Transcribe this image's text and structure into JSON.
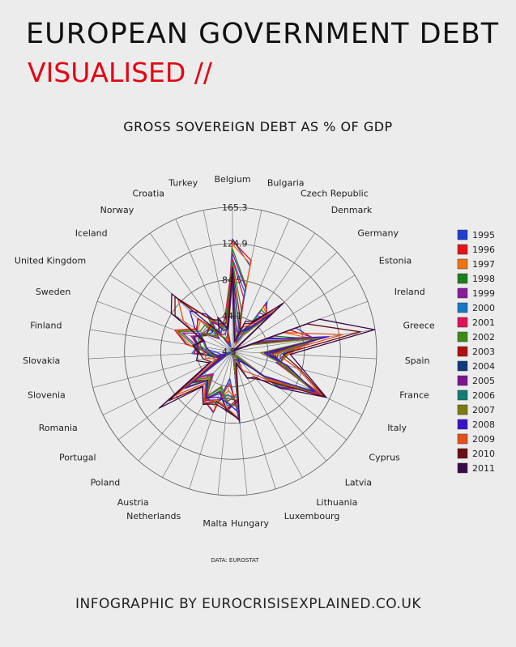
{
  "header": {
    "title": "EUROPEAN GOVERNMENT DEBT",
    "subtitle": "VISUALISED //"
  },
  "footer": {
    "source": "DATA: EUROSTAT",
    "credit": "INFOGRAPHIC BY EUROCRISISEXPLAINED.CO.UK"
  },
  "chart_data": {
    "type": "radar",
    "title": "GROSS SOVEREIGN DEBT AS % OF GDP",
    "axes": [
      "Belgium",
      "Bulgaria",
      "Czech Republic",
      "Denmark",
      "Germany",
      "Estonia",
      "Ireland",
      "Greece",
      "Spain",
      "France",
      "Italy",
      "Cyprus",
      "Latvia",
      "Lithuania",
      "Luxembourg",
      "Hungary",
      "Malta",
      "Netherlands",
      "Austria",
      "Poland",
      "Portugal",
      "Romania",
      "Slovenia",
      "Slovakia",
      "Finland",
      "Sweden",
      "United Kingdom",
      "Iceland",
      "Norway",
      "Croatia",
      "Turkey"
    ],
    "rings": [
      4.5,
      44.1,
      84.5,
      124.9,
      165.3
    ],
    "ring_labels": [
      "4.5",
      "44.1",
      "84.5",
      "124.9",
      "165.3"
    ],
    "range": [
      4.5,
      165.3
    ],
    "legend_position": "right",
    "series": [
      {
        "name": "1995",
        "color": "#1f3fd0",
        "values": [
          130,
          102,
          14,
          72,
          55,
          8,
          80,
          97,
          63,
          55,
          121,
          51,
          15,
          11,
          7,
          85,
          35,
          76,
          68,
          49,
          59,
          7,
          18,
          22,
          56,
          72,
          51,
          58,
          32,
          10,
          33
        ]
      },
      {
        "name": "1996",
        "color": "#e3121b",
        "values": [
          128,
          108,
          12,
          69,
          58,
          7,
          73,
          99,
          67,
          58,
          120,
          53,
          14,
          14,
          7,
          71,
          40,
          75,
          68,
          46,
          58,
          11,
          21,
          31,
          57,
          73,
          52,
          57,
          30,
          14,
          29
        ]
      },
      {
        "name": "1997",
        "color": "#f07214",
        "values": [
          124,
          104,
          12,
          65,
          59,
          6,
          65,
          97,
          66,
          59,
          117,
          55,
          12,
          15,
          7,
          64,
          48,
          69,
          64,
          44,
          55,
          15,
          22,
          33,
          53,
          71,
          50,
          54,
          27,
          18,
          32
        ]
      },
      {
        "name": "1998",
        "color": "#1b7f1e",
        "values": [
          119,
          79,
          15,
          61,
          60,
          6,
          54,
          95,
          64,
          59,
          114,
          58,
          10,
          16,
          7,
          62,
          53,
          65,
          64,
          39,
          51,
          18,
          23,
          34,
          48,
          69,
          47,
          47,
          24,
          20,
          30
        ]
      },
      {
        "name": "1999",
        "color": "#8a1b9c",
        "values": [
          114,
          77,
          16,
          57,
          61,
          6,
          48,
          94,
          62,
          59,
          113,
          59,
          12,
          23,
          7,
          60,
          57,
          61,
          67,
          40,
          51,
          21,
          24,
          47,
          45,
          64,
          43,
          41,
          28,
          25,
          33
        ]
      },
      {
        "name": "2000",
        "color": "#1777c4",
        "values": [
          108,
          72,
          18,
          52,
          60,
          5,
          38,
          104,
          59,
          57,
          108,
          59,
          12,
          24,
          6,
          56,
          54,
          54,
          66,
          37,
          50,
          22,
          26,
          50,
          44,
          53,
          41,
          39,
          29,
          33,
          39
        ]
      },
      {
        "name": "2001",
        "color": "#e0105a",
        "values": [
          107,
          66,
          24,
          49,
          59,
          5,
          35,
          107,
          55,
          56,
          108,
          61,
          14,
          23,
          6,
          52,
          61,
          51,
          67,
          38,
          53,
          26,
          26,
          48,
          43,
          54,
          38,
          42,
          27,
          34,
          45
        ]
      },
      {
        "name": "2002",
        "color": "#3d8a17",
        "values": [
          104,
          53,
          26,
          49,
          61,
          6,
          32,
          105,
          52,
          59,
          105,
          64,
          13,
          22,
          6,
          55,
          60,
          50,
          66,
          42,
          56,
          25,
          28,
          43,
          42,
          51,
          38,
          41,
          34,
          35,
          42
        ]
      },
      {
        "name": "2003",
        "color": "#b00f10",
        "values": [
          99,
          45,
          28,
          46,
          64,
          6,
          31,
          98,
          49,
          63,
          104,
          69,
          14,
          21,
          6,
          58,
          69,
          52,
          65,
          47,
          59,
          21,
          27,
          42,
          44,
          51,
          39,
          41,
          44,
          35,
          38
        ]
      },
      {
        "name": "2004",
        "color": "#0f3a7a",
        "values": [
          94,
          37,
          28,
          44,
          66,
          5,
          29,
          99,
          46,
          65,
          104,
          70,
          15,
          19,
          6,
          60,
          72,
          52,
          64,
          46,
          62,
          19,
          27,
          41,
          44,
          51,
          40,
          35,
          45,
          38,
          37
        ]
      },
      {
        "name": "2005",
        "color": "#7a1590",
        "values": [
          92,
          27,
          28,
          37,
          68,
          5,
          27,
          101,
          43,
          67,
          106,
          69,
          12,
          18,
          6,
          61,
          70,
          52,
          64,
          47,
          68,
          16,
          27,
          34,
          42,
          50,
          42,
          25,
          44,
          38,
          33
        ]
      },
      {
        "name": "2006",
        "color": "#137d73",
        "values": [
          88,
          21,
          28,
          31,
          68,
          4,
          25,
          107,
          40,
          64,
          106,
          65,
          10,
          18,
          7,
          65,
          65,
          47,
          62,
          48,
          69,
          12,
          26,
          31,
          40,
          45,
          43,
          30,
          54,
          36,
          30
        ]
      },
      {
        "name": "2007",
        "color": "#7b7b0e",
        "values": [
          84,
          17,
          28,
          27,
          65,
          4,
          25,
          107,
          36,
          64,
          103,
          59,
          9,
          17,
          7,
          67,
          62,
          45,
          61,
          45,
          69,
          13,
          23,
          30,
          35,
          40,
          44,
          28,
          52,
          33,
          28
        ]
      },
      {
        "name": "2008",
        "color": "#3a12c8",
        "values": [
          89,
          14,
          29,
          34,
          66,
          5,
          44,
          113,
          40,
          68,
          106,
          49,
          20,
          16,
          14,
          73,
          62,
          58,
          64,
          47,
          72,
          13,
          22,
          28,
          34,
          38,
          54,
          70,
          55,
          30,
          29
        ]
      },
      {
        "name": "2009",
        "color": "#e4501c",
        "values": [
          96,
          15,
          34,
          41,
          74,
          7,
          65,
          129,
          54,
          79,
          116,
          59,
          37,
          29,
          15,
          80,
          68,
          61,
          70,
          51,
          84,
          24,
          35,
          36,
          43,
          42,
          69,
          88,
          48,
          36,
          36
        ]
      },
      {
        "name": "2010",
        "color": "#6b0d12",
        "values": [
          96,
          16,
          38,
          43,
          83,
          7,
          93,
          149,
          61,
          82,
          119,
          61,
          45,
          38,
          19,
          82,
          69,
          63,
          72,
          55,
          94,
          31,
          38,
          41,
          48,
          40,
          80,
          93,
          49,
          42,
          32
        ]
      },
      {
        "name": "2011",
        "color": "#3b0a4a",
        "values": [
          98,
          16,
          41,
          46,
          81,
          6,
          108,
          165,
          69,
          86,
          121,
          71,
          42,
          39,
          18,
          81,
          71,
          66,
          72,
          56,
          108,
          33,
          46,
          43,
          49,
          38,
          85,
          98,
          30,
          46,
          30
        ]
      }
    ]
  }
}
